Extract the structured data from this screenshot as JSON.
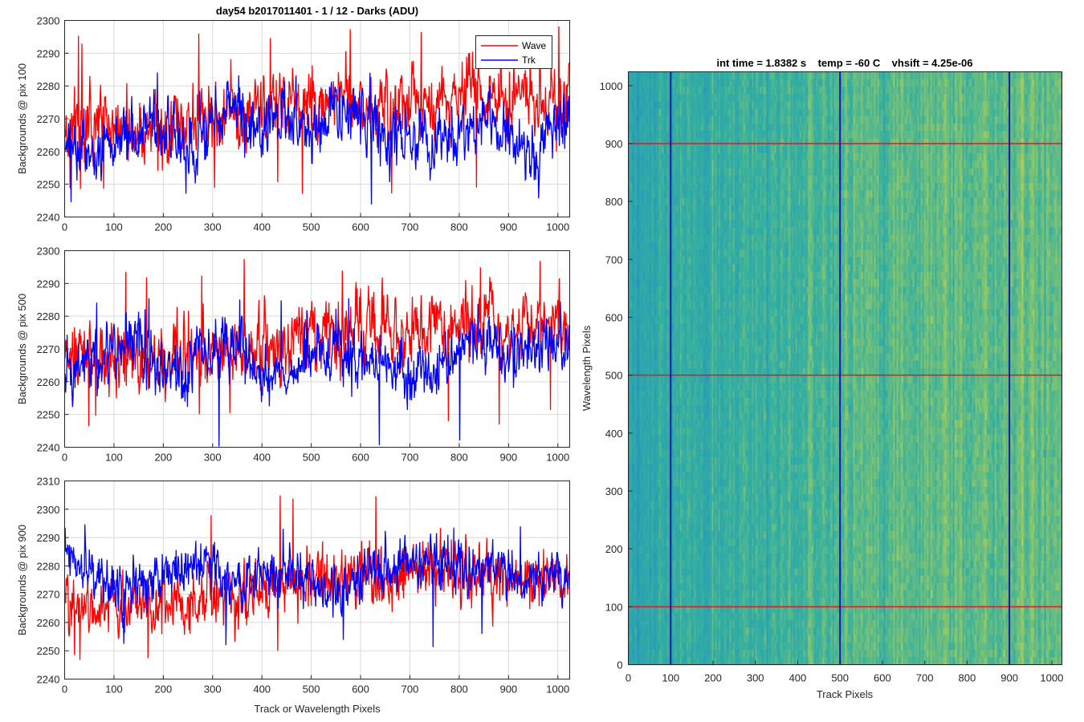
{
  "figure": {
    "title": "day54 b2017011401 - 1 / 12 - Darks (ADU)",
    "heatmap_title": "int time = 1.8382 s    temp = -60 C    vhsift = 4.25e-06"
  },
  "colors": {
    "wave": "#ff0000",
    "trk": "#0000ff",
    "marker_horizontal": "#e8141e",
    "marker_vertical": "#1a1aa8",
    "colormap_low": "#1e8fc4",
    "colormap_high": "#bfd24a"
  },
  "chart_data": [
    {
      "type": "line",
      "title": "day54 b2017011401 - 1 / 12 - Darks (ADU)",
      "xlabel": "",
      "ylabel": "Backgrounds @ pix 100",
      "xlim": [
        0,
        1024
      ],
      "ylim": [
        2240,
        2300
      ],
      "xticks": [
        0,
        100,
        200,
        300,
        400,
        500,
        600,
        700,
        800,
        900,
        1000
      ],
      "yticks": [
        2240,
        2250,
        2260,
        2270,
        2280,
        2290,
        2300
      ],
      "grid": true,
      "legend": {
        "position": "top-right",
        "entries": [
          "Wave",
          "Trk"
        ]
      },
      "series": [
        {
          "name": "Wave",
          "color": "#ff0000",
          "x": [
            0,
            50,
            100,
            150,
            200,
            250,
            300,
            350,
            400,
            450,
            500,
            550,
            600,
            650,
            700,
            750,
            800,
            850,
            900,
            950,
            1000,
            1023
          ],
          "values": [
            2266,
            2267,
            2270,
            2268,
            2267,
            2269,
            2271,
            2271,
            2272,
            2274,
            2276,
            2276,
            2275,
            2274,
            2275,
            2277,
            2277,
            2278,
            2277,
            2276,
            2276,
            2277
          ],
          "noise": 7,
          "spike_max": 2299,
          "spike_min": 2247
        },
        {
          "name": "Trk",
          "color": "#0000ff",
          "x": [
            0,
            50,
            100,
            150,
            200,
            250,
            300,
            350,
            400,
            450,
            500,
            550,
            600,
            650,
            700,
            750,
            800,
            850,
            900,
            950,
            1000,
            1023
          ],
          "values": [
            2264,
            2258,
            2264,
            2265,
            2266,
            2258,
            2271,
            2271,
            2268,
            2269,
            2267,
            2271,
            2269,
            2266,
            2263,
            2263,
            2266,
            2272,
            2264,
            2258,
            2271,
            2271
          ],
          "noise": 6,
          "spike_max": 2286,
          "spike_min": 2242
        }
      ]
    },
    {
      "type": "line",
      "title": "",
      "xlabel": "",
      "ylabel": "Backgrounds @ pix 500",
      "xlim": [
        0,
        1024
      ],
      "ylim": [
        2240,
        2300
      ],
      "xticks": [
        0,
        100,
        200,
        300,
        400,
        500,
        600,
        700,
        800,
        900,
        1000
      ],
      "yticks": [
        2240,
        2250,
        2260,
        2270,
        2280,
        2290,
        2300
      ],
      "grid": true,
      "series": [
        {
          "name": "Wave",
          "color": "#ff0000",
          "x": [
            0,
            50,
            100,
            150,
            200,
            250,
            300,
            350,
            400,
            450,
            500,
            550,
            600,
            650,
            700,
            750,
            800,
            850,
            900,
            950,
            1000,
            1023
          ],
          "values": [
            2266,
            2267,
            2268,
            2266,
            2266,
            2268,
            2270,
            2272,
            2272,
            2273,
            2274,
            2275,
            2275,
            2274,
            2275,
            2276,
            2276,
            2277,
            2276,
            2276,
            2277,
            2277
          ],
          "noise": 7,
          "spike_max": 2298,
          "spike_min": 2246
        },
        {
          "name": "Trk",
          "color": "#0000ff",
          "x": [
            0,
            50,
            100,
            150,
            200,
            250,
            300,
            350,
            400,
            450,
            500,
            550,
            600,
            650,
            700,
            750,
            800,
            850,
            900,
            950,
            1000,
            1023
          ],
          "values": [
            2266,
            2266,
            2270,
            2274,
            2262,
            2263,
            2270,
            2272,
            2263,
            2262,
            2269,
            2269,
            2265,
            2266,
            2262,
            2265,
            2270,
            2274,
            2268,
            2270,
            2274,
            2265
          ],
          "noise": 6,
          "spike_max": 2286,
          "spike_min": 2240
        }
      ]
    },
    {
      "type": "line",
      "title": "",
      "xlabel": "Track or Wavelength Pixels",
      "ylabel": "Backgrounds @ pix 900",
      "xlim": [
        0,
        1024
      ],
      "ylim": [
        2240,
        2310
      ],
      "xticks": [
        0,
        100,
        200,
        300,
        400,
        500,
        600,
        700,
        800,
        900,
        1000
      ],
      "yticks": [
        2240,
        2250,
        2260,
        2270,
        2280,
        2290,
        2300,
        2310
      ],
      "grid": true,
      "series": [
        {
          "name": "Wave",
          "color": "#ff0000",
          "x": [
            0,
            50,
            100,
            150,
            200,
            250,
            300,
            350,
            400,
            450,
            500,
            550,
            600,
            650,
            700,
            750,
            800,
            850,
            900,
            950,
            1000,
            1023
          ],
          "values": [
            2266,
            2265,
            2266,
            2267,
            2266,
            2267,
            2268,
            2270,
            2272,
            2274,
            2276,
            2277,
            2277,
            2276,
            2277,
            2277,
            2276,
            2276,
            2276,
            2275,
            2276,
            2277
          ],
          "noise": 7,
          "spike_max": 2305,
          "spike_min": 2246
        },
        {
          "name": "Trk",
          "color": "#0000ff",
          "x": [
            0,
            50,
            100,
            150,
            200,
            250,
            300,
            350,
            400,
            450,
            500,
            550,
            600,
            650,
            700,
            750,
            800,
            850,
            900,
            950,
            1000,
            1023
          ],
          "values": [
            2283,
            2278,
            2272,
            2272,
            2274,
            2280,
            2280,
            2272,
            2277,
            2279,
            2275,
            2270,
            2276,
            2278,
            2280,
            2282,
            2279,
            2278,
            2280,
            2276,
            2277,
            2278
          ],
          "noise": 6,
          "spike_max": 2296,
          "spike_min": 2251
        }
      ]
    },
    {
      "type": "heatmap",
      "title": "int time = 1.8382 s    temp = -60 C    vhsift = 4.25e-06",
      "xlabel": "Track Pixels",
      "ylabel": "Wavelength Pixels",
      "xlim": [
        0,
        1024
      ],
      "ylim": [
        0,
        1024
      ],
      "xticks": [
        0,
        100,
        200,
        300,
        400,
        500,
        600,
        700,
        800,
        900,
        1000
      ],
      "yticks": [
        0,
        100,
        200,
        300,
        400,
        500,
        600,
        700,
        800,
        900,
        1000
      ],
      "grid": false,
      "colormap": "parula",
      "value_range": [
        2240,
        2300
      ],
      "column_profile": {
        "x": [
          0,
          100,
          200,
          300,
          400,
          500,
          600,
          700,
          800,
          900,
          1000,
          1024
        ],
        "values": [
          2262,
          2264,
          2265,
          2267,
          2269,
          2271,
          2272,
          2273,
          2273,
          2272,
          2274,
          2274
        ]
      },
      "markers": {
        "horizontal_lines_y": [
          100,
          500,
          900
        ],
        "vertical_lines_x": [
          100,
          500,
          900
        ]
      }
    }
  ]
}
